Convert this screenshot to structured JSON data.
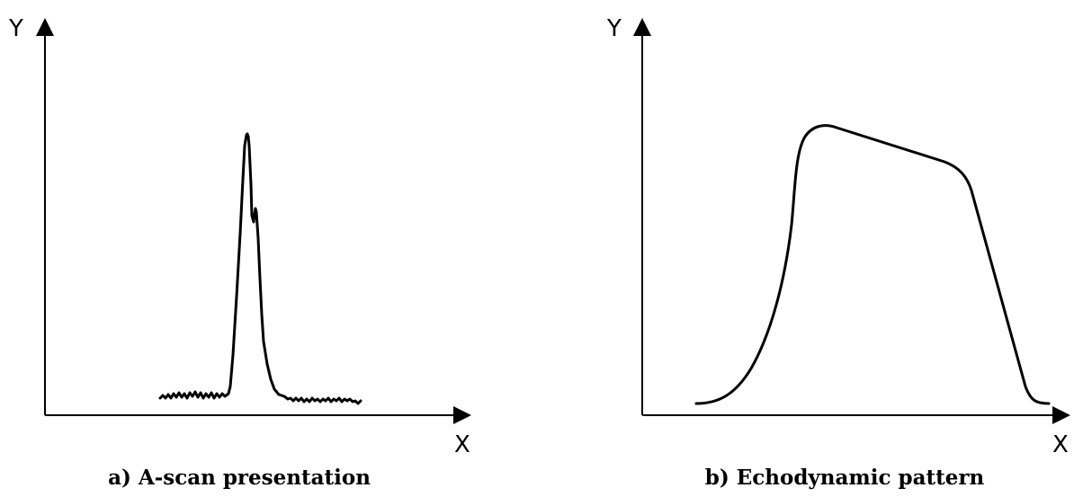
{
  "panels": [
    {
      "id": "a",
      "y_axis_label": "Y",
      "x_axis_label": "X",
      "caption": "a) A-scan presentation"
    },
    {
      "id": "b",
      "y_axis_label": "Y",
      "x_axis_label": "X",
      "caption": "b) Echodynamic pattern"
    }
  ],
  "colors": {
    "ink": "#000000",
    "background": "#ffffff"
  }
}
